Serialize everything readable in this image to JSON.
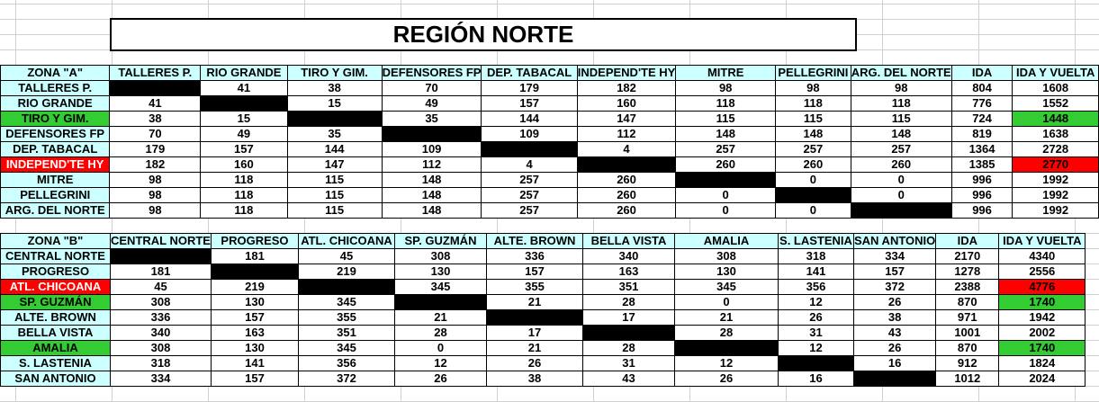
{
  "title": "REGIÓN NORTE",
  "zones": [
    {
      "headers": [
        "ZONA \"A\"",
        "TALLERES P.",
        "RIO GRANDE",
        "TIRO Y GIM.",
        "DEFENSORES FP",
        "DEP. TABACAL",
        "INDEPEND'TE HY",
        "MITRE",
        "PELLEGRINI",
        "ARG. DEL NORTE",
        "IDA",
        "IDA Y VUELTA"
      ],
      "rows": [
        {
          "label": "TALLERES P.",
          "cells": [
            "X",
            "41",
            "38",
            "70",
            "179",
            "182",
            "98",
            "98",
            "98",
            "804",
            "1608"
          ]
        },
        {
          "label": "RIO GRANDE",
          "cells": [
            "41",
            "X",
            "15",
            "49",
            "157",
            "160",
            "118",
            "118",
            "118",
            "776",
            "1552"
          ]
        },
        {
          "label": "TIRO Y GIM.",
          "hl": "green",
          "cells": [
            "38",
            "15",
            "X",
            "35",
            "144",
            "147",
            "115",
            "115",
            "115",
            "724",
            "1448"
          ]
        },
        {
          "label": "DEFENSORES FP",
          "cells": [
            "70",
            "49",
            "35",
            "X",
            "109",
            "112",
            "148",
            "148",
            "148",
            "819",
            "1638"
          ]
        },
        {
          "label": "DEP. TABACAL",
          "cells": [
            "179",
            "157",
            "144",
            "109",
            "X",
            "4",
            "257",
            "257",
            "257",
            "1364",
            "2728"
          ]
        },
        {
          "label": "INDEPEND'TE HY",
          "hl": "red",
          "cells": [
            "182",
            "160",
            "147",
            "112",
            "4",
            "X",
            "260",
            "260",
            "260",
            "1385",
            "2770"
          ]
        },
        {
          "label": "MITRE",
          "cells": [
            "98",
            "118",
            "115",
            "148",
            "257",
            "260",
            "X",
            "0",
            "0",
            "996",
            "1992"
          ]
        },
        {
          "label": "PELLEGRINI",
          "cells": [
            "98",
            "118",
            "115",
            "148",
            "257",
            "260",
            "0",
            "X",
            "0",
            "996",
            "1992"
          ]
        },
        {
          "label": "ARG. DEL NORTE",
          "cells": [
            "98",
            "118",
            "115",
            "148",
            "257",
            "260",
            "0",
            "0",
            "X",
            "996",
            "1992"
          ]
        }
      ]
    },
    {
      "headers": [
        "ZONA \"B\"",
        "CENTRAL NORTE",
        "PROGRESO",
        "ATL. CHICOANA",
        "SP. GUZMÁN",
        "ALTE. BROWN",
        "BELLA VISTA",
        "AMALIA",
        "S. LASTENIA",
        "SAN ANTONIO",
        "IDA",
        "IDA Y VUELTA"
      ],
      "rows": [
        {
          "label": "CENTRAL NORTE",
          "cells": [
            "X",
            "181",
            "45",
            "308",
            "336",
            "340",
            "308",
            "318",
            "334",
            "2170",
            "4340"
          ]
        },
        {
          "label": "PROGRESO",
          "cells": [
            "181",
            "X",
            "219",
            "130",
            "157",
            "163",
            "130",
            "141",
            "157",
            "1278",
            "2556"
          ]
        },
        {
          "label": "ATL. CHICOANA",
          "hl": "red",
          "cells": [
            "45",
            "219",
            "X",
            "345",
            "355",
            "351",
            "345",
            "356",
            "372",
            "2388",
            "4776"
          ]
        },
        {
          "label": "SP. GUZMÁN",
          "hl": "green",
          "cells": [
            "308",
            "130",
            "345",
            "X",
            "21",
            "28",
            "0",
            "12",
            "26",
            "870",
            "1740"
          ]
        },
        {
          "label": "ALTE. BROWN",
          "cells": [
            "336",
            "157",
            "355",
            "21",
            "X",
            "17",
            "21",
            "26",
            "38",
            "971",
            "1942"
          ]
        },
        {
          "label": "BELLA VISTA",
          "cells": [
            "340",
            "163",
            "351",
            "28",
            "17",
            "X",
            "28",
            "31",
            "43",
            "1001",
            "2002"
          ]
        },
        {
          "label": "AMALIA",
          "hl": "green",
          "cells": [
            "308",
            "130",
            "345",
            "0",
            "21",
            "28",
            "X",
            "12",
            "26",
            "870",
            "1740"
          ]
        },
        {
          "label": "S. LASTENIA",
          "cells": [
            "318",
            "141",
            "356",
            "12",
            "26",
            "31",
            "12",
            "X",
            "16",
            "912",
            "1824"
          ]
        },
        {
          "label": "SAN ANTONIO",
          "cells": [
            "334",
            "157",
            "372",
            "26",
            "38",
            "43",
            "26",
            "16",
            "X",
            "1012",
            "2024"
          ]
        }
      ]
    }
  ]
}
